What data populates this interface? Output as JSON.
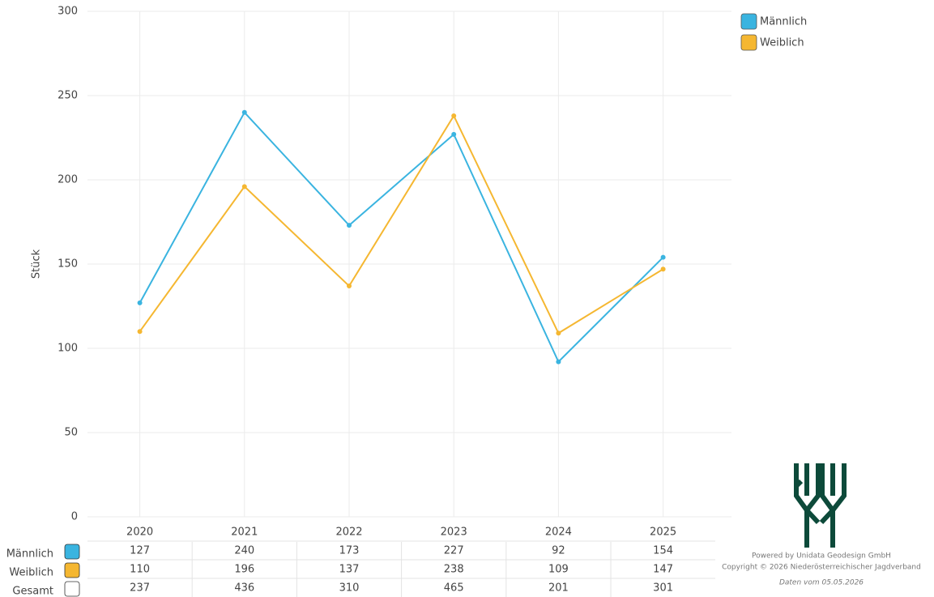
{
  "chart_data": {
    "type": "line",
    "y_label": "Stück",
    "categories": [
      "2020",
      "2021",
      "2022",
      "2023",
      "2024",
      "2025"
    ],
    "series": [
      {
        "name": "Männlich",
        "color": "#3ab4e0",
        "values": [
          127,
          240,
          173,
          227,
          92,
          154
        ]
      },
      {
        "name": "Weiblich",
        "color": "#f5b731",
        "values": [
          110,
          196,
          137,
          238,
          109,
          147
        ]
      }
    ],
    "total": {
      "name": "Gesamt",
      "color": "#ffffff",
      "values": [
        237,
        436,
        310,
        465,
        201,
        301
      ]
    },
    "ylim": [
      0,
      300
    ],
    "yticks": [
      0,
      50,
      100,
      150,
      200,
      250,
      300
    ],
    "grid": true,
    "legend": "top-right"
  },
  "footer": {
    "powered": "Powered by Unidata Geodesign GmbH",
    "copyright": "Copyright © 2026 Niederösterreichischer Jagdverband",
    "date": "Daten vom 05.05.2026"
  }
}
